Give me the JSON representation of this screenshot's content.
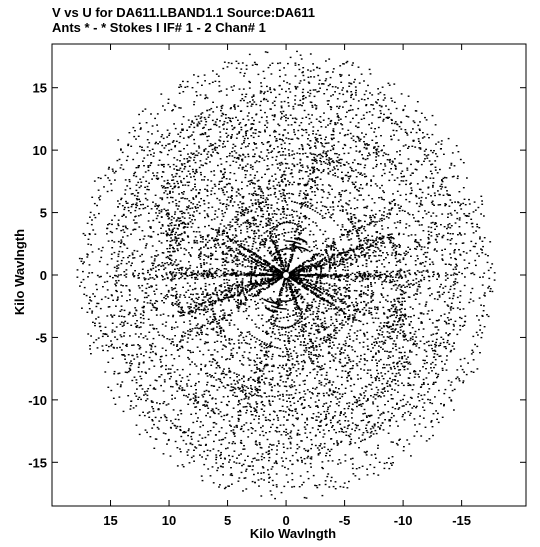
{
  "chart_data": {
    "type": "scatter",
    "title": "V vs U for DA611.LBAND1.1   Source:DA611",
    "subtitle": "Ants * - *     Stokes I   IF# 1 - 2   Chan# 1",
    "xlabel": "Kilo Wavlngth",
    "ylabel": "Kilo Wavlngth",
    "xlim": [
      20,
      -20.5
    ],
    "ylim": [
      -18.5,
      18.5
    ],
    "x_inverted": true,
    "x_ticks": [
      15,
      10,
      5,
      0,
      -5,
      -10,
      -15
    ],
    "y_ticks": [
      15,
      10,
      5,
      0,
      -5,
      -10,
      -15
    ],
    "grid": false,
    "legend": "none",
    "point_color": "#000000",
    "background": "#ffffff",
    "uv_coverage": {
      "description_free": true,
      "max_radius": 18,
      "point_count_estimate": 6000,
      "symmetric": true
    }
  }
}
